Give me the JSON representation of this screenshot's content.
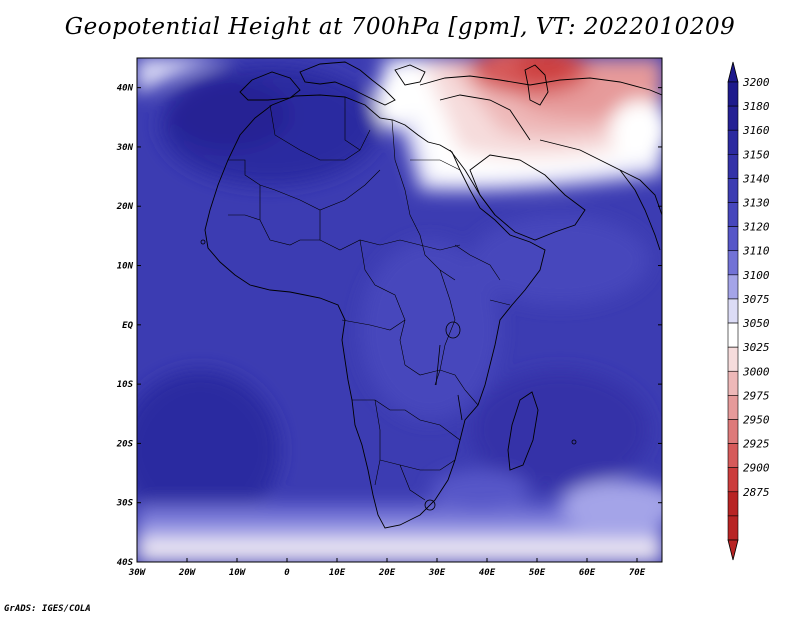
{
  "title": "Geopotential Height at 700hPa [gpm], VT: 2022010209",
  "credit": "GrADS: IGES/COLA",
  "map": {
    "lon_range": [
      -30,
      75
    ],
    "lat_range": [
      -40,
      45
    ],
    "lon_ticks": [
      {
        "value": -30,
        "label": "30W"
      },
      {
        "value": -20,
        "label": "20W"
      },
      {
        "value": -10,
        "label": "10W"
      },
      {
        "value": 0,
        "label": "0"
      },
      {
        "value": 10,
        "label": "10E"
      },
      {
        "value": 20,
        "label": "20E"
      },
      {
        "value": 30,
        "label": "30E"
      },
      {
        "value": 40,
        "label": "40E"
      },
      {
        "value": 50,
        "label": "50E"
      },
      {
        "value": 60,
        "label": "60E"
      },
      {
        "value": 70,
        "label": "70E"
      }
    ],
    "lat_ticks": [
      {
        "value": 40,
        "label": "40N"
      },
      {
        "value": 30,
        "label": "30N"
      },
      {
        "value": 20,
        "label": "20N"
      },
      {
        "value": 10,
        "label": "10N"
      },
      {
        "value": 0,
        "label": "EQ"
      },
      {
        "value": -10,
        "label": "10S"
      },
      {
        "value": -20,
        "label": "20S"
      },
      {
        "value": -30,
        "label": "30S"
      },
      {
        "value": -40,
        "label": "40S"
      }
    ]
  },
  "colorbar": {
    "levels": [
      {
        "label": "3200",
        "color": "#1e1a8c"
      },
      {
        "label": "3180",
        "color": "#252094"
      },
      {
        "label": "3160",
        "color": "#2c2aa0"
      },
      {
        "label": "3150",
        "color": "#3432a8"
      },
      {
        "label": "3140",
        "color": "#3c3cb2"
      },
      {
        "label": "3130",
        "color": "#4646bc"
      },
      {
        "label": "3120",
        "color": "#5656c8"
      },
      {
        "label": "3110",
        "color": "#7272d6"
      },
      {
        "label": "3100",
        "color": "#a4a4e8"
      },
      {
        "label": "3075",
        "color": "#dcdcf6"
      },
      {
        "label": "3050",
        "color": "#ffffff"
      },
      {
        "label": "3025",
        "color": "#f6dcdc"
      },
      {
        "label": "3000",
        "color": "#eeb8b8"
      },
      {
        "label": "2975",
        "color": "#e69a9a"
      },
      {
        "label": "2950",
        "color": "#de7a7a"
      },
      {
        "label": "2925",
        "color": "#d65a5a"
      },
      {
        "label": "2900",
        "color": "#cc3c3c"
      },
      {
        "label": "2875",
        "color": "#b82424"
      }
    ]
  }
}
